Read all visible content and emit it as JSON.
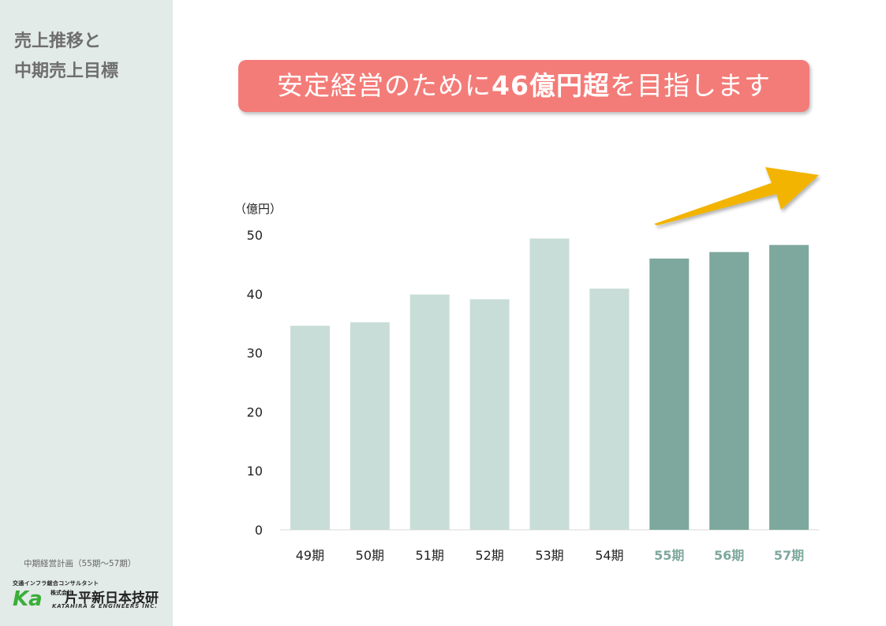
{
  "sidebar": {
    "title_line1": "売上推移と",
    "title_line2": "中期売上目標",
    "plan_note": "中期経営計画（55期～57期）"
  },
  "logo": {
    "tagline": "交通インフラ総合コンサルタント",
    "mark": "Ka",
    "company_type": "株式会社",
    "company_name": "片平新日本技研",
    "english_name": "KATAHIRA & ENGINEERS INC."
  },
  "headline": {
    "prefix": "安定経営のために",
    "emphasis": "46億円超",
    "suffix": "を目指します"
  },
  "colors": {
    "sidebar_bg": "#e2ebe7",
    "headline_bg": "#f47c78",
    "past_bar": "#c9ddd8",
    "plan_bar": "#7ea89d",
    "plan_label": "#7ea89d",
    "arrow": "#f2b400"
  },
  "chart_data": {
    "type": "bar",
    "ylabel": "（億円）",
    "ylim": [
      0,
      50
    ],
    "yticks": [
      "0",
      "10",
      "20",
      "30",
      "40",
      "50"
    ],
    "categories": [
      "49期",
      "50期",
      "51期",
      "52期",
      "53期",
      "54期",
      "55期",
      "56期",
      "57期"
    ],
    "values": [
      34.6,
      35.2,
      39.9,
      39.1,
      49.4,
      40.9,
      46.0,
      47.1,
      48.3
    ],
    "highlighted_categories": [
      "55期",
      "56期",
      "57期"
    ],
    "annotation": "upward-arrow"
  }
}
